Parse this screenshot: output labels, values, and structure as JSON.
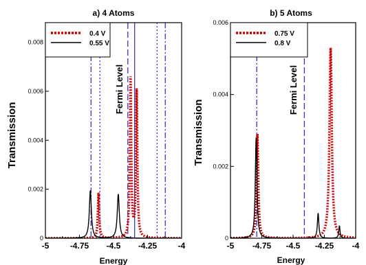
{
  "chart_data": [
    {
      "type": "line",
      "title": "a) 4 Atoms",
      "xlabel": "Energy",
      "ylabel": "Transmission",
      "xlim": [
        -5,
        -4
      ],
      "ylim": [
        0,
        0.0088
      ],
      "xticks": [
        -5,
        -4.75,
        -4.5,
        -4.25,
        -4
      ],
      "xtick_labels": [
        "-5",
        "-4.75",
        "-4.5",
        "-4.25",
        "-4"
      ],
      "yticks": [
        0,
        0.002,
        0.004,
        0.006,
        0.008
      ],
      "ytick_labels": [
        "0",
        "0.002",
        "0.004",
        "0.006",
        "0.008"
      ],
      "annotation": "Fermi Level",
      "legend_position": "top-left",
      "series": [
        {
          "name": "0.4 V",
          "color": "#cc0000",
          "style": "dotted",
          "peaks": [
            {
              "x": -4.61,
              "height": 0.00185,
              "width": 0.006
            },
            {
              "x": -4.375,
              "height": 0.0065,
              "width": 0.006
            },
            {
              "x": -4.33,
              "height": 0.006,
              "width": 0.006
            }
          ]
        },
        {
          "name": "0.55 V",
          "color": "#000000",
          "style": "solid",
          "peaks": [
            {
              "x": -4.67,
              "height": 0.00195,
              "width": 0.009
            },
            {
              "x": -4.465,
              "height": 0.0018,
              "width": 0.009
            }
          ]
        }
      ],
      "vlines": [
        {
          "x": -4.665,
          "color": "#3333cc",
          "style": "dashdot"
        },
        {
          "x": -4.6,
          "color": "#3333cc",
          "style": "dotted"
        },
        {
          "x": -4.395,
          "color": "#3333cc",
          "style": "dashed"
        },
        {
          "x": -4.345,
          "color": "#3333cc",
          "style": "solid"
        },
        {
          "x": -4.18,
          "color": "#3333cc",
          "style": "dotted"
        },
        {
          "x": -4.12,
          "color": "#3333cc",
          "style": "dashdot"
        }
      ]
    },
    {
      "type": "line",
      "title": "b) 5 Atoms",
      "xlabel": "Energy",
      "ylabel": "Transmission",
      "xlim": [
        -5,
        -4
      ],
      "ylim": [
        0,
        0.006
      ],
      "xticks": [
        -5,
        -4.75,
        -4.5,
        -4.25,
        -4
      ],
      "xtick_labels": [
        "-5",
        "-4.75",
        "-4.5",
        "-4.25",
        "-4"
      ],
      "yticks": [
        0,
        0.002,
        0.004,
        0.006
      ],
      "ytick_labels": [
        "0",
        "0.002",
        "0.004",
        "0.006"
      ],
      "annotation": "Fermi Level",
      "legend_position": "top-left",
      "series": [
        {
          "name": "0.75 V",
          "color": "#cc0000",
          "style": "dotted",
          "peaks": [
            {
              "x": -4.785,
              "height": 0.0029,
              "width": 0.008
            },
            {
              "x": -4.2,
              "height": 0.0053,
              "width": 0.011
            }
          ]
        },
        {
          "name": "0.8 V",
          "color": "#000000",
          "style": "solid",
          "peaks": [
            {
              "x": -4.795,
              "height": 0.0028,
              "width": 0.008
            },
            {
              "x": -4.3,
              "height": 0.0007,
              "width": 0.007
            },
            {
              "x": -4.13,
              "height": 0.00035,
              "width": 0.006
            }
          ]
        }
      ],
      "vlines": [
        {
          "x": -4.79,
          "color": "#3333cc",
          "style": "dashdot"
        },
        {
          "x": -4.41,
          "color": "#3333cc",
          "style": "dashed"
        },
        {
          "x": -3.985,
          "color": "#3333cc",
          "style": "dashdot"
        }
      ]
    }
  ]
}
